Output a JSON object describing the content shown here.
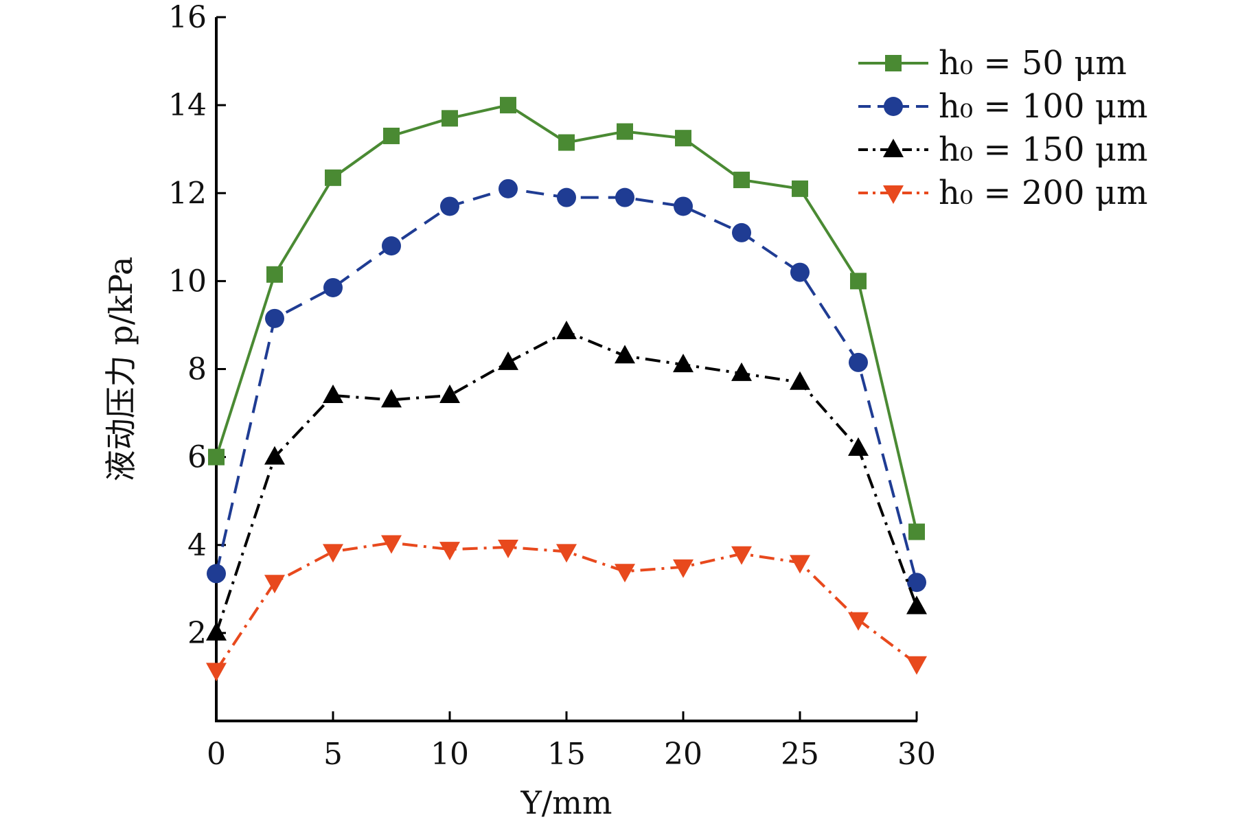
{
  "chart_data": {
    "type": "line",
    "xlabel": "Y/mm",
    "ylabel": "液动压力 p/kPa",
    "xlim": [
      0,
      30
    ],
    "ylim": [
      0,
      16
    ],
    "xticks": [
      "0",
      "5",
      "10",
      "15",
      "20",
      "25",
      "30"
    ],
    "yticks": [
      "2",
      "4",
      "6",
      "8",
      "10",
      "12",
      "14",
      "16"
    ],
    "grid": false,
    "legend_position": "top-right",
    "x": [
      0,
      2.5,
      5,
      7.5,
      10,
      12.5,
      15,
      17.5,
      20,
      22.5,
      25,
      27.5,
      30
    ],
    "series": [
      {
        "name": "h₀ = 50 μm",
        "color": "#4a8a33",
        "marker": "square",
        "line_style": "solid",
        "values": [
          6.0,
          10.15,
          12.35,
          13.3,
          13.7,
          14.0,
          13.15,
          13.4,
          13.25,
          12.3,
          12.1,
          10.0,
          4.3
        ]
      },
      {
        "name": "h₀ = 100 μm",
        "color": "#1f3c93",
        "marker": "circle",
        "line_style": "dashed",
        "values": [
          3.35,
          9.15,
          9.85,
          10.8,
          11.7,
          12.1,
          11.9,
          11.9,
          11.7,
          11.1,
          10.2,
          8.15,
          3.15
        ]
      },
      {
        "name": "h₀ = 150 μm",
        "color": "#000000",
        "marker": "triangle-up",
        "line_style": "dash-dot",
        "values": [
          2.0,
          6.0,
          7.4,
          7.3,
          7.4,
          8.15,
          8.85,
          8.3,
          8.1,
          7.9,
          7.7,
          6.2,
          2.6
        ]
      },
      {
        "name": "h₀ = 200 μm",
        "color": "#e8491d",
        "marker": "triangle-down",
        "line_style": "dash-dot",
        "values": [
          1.15,
          3.15,
          3.85,
          4.05,
          3.9,
          3.95,
          3.85,
          3.4,
          3.5,
          3.8,
          3.6,
          2.3,
          1.3
        ]
      }
    ]
  }
}
